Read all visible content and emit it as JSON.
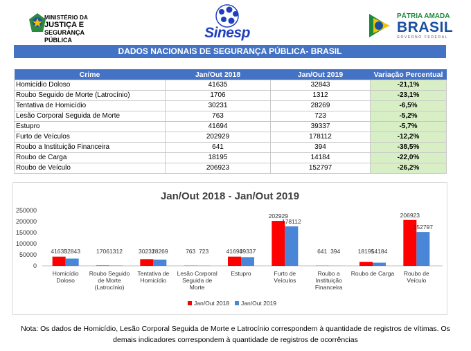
{
  "header": {
    "mj_line1": "MINISTÉRIO DA",
    "mj_line2": "JUSTIÇA E",
    "mj_line3": "SEGURANÇA PÚBLICA",
    "sinesp": "Sinesp",
    "brasil_line1": "PÁTRIA AMADA",
    "brasil_line2": "BRASIL",
    "brasil_line3": "GOVERNO FEDERAL"
  },
  "banner": "DADOS NACIONAIS DE SEGURANÇA PÚBLICA- BRASIL",
  "table": {
    "headers": [
      "Crime",
      "Jan/Out 2018",
      "Jan/Out 2019",
      "Variação Percentual"
    ],
    "rows": [
      [
        "Homicídio Doloso",
        "41635",
        "32843",
        "-21,1%"
      ],
      [
        "Roubo Seguido de Morte (Latrocínio)",
        "1706",
        "1312",
        "-23,1%"
      ],
      [
        "Tentativa de Homicídio",
        "30231",
        "28269",
        "-6,5%"
      ],
      [
        "Lesão Corporal Seguida de Morte",
        "763",
        "723",
        "-5,2%"
      ],
      [
        "Estupro",
        "41694",
        "39337",
        "-5,7%"
      ],
      [
        "Furto de Veículos",
        "202929",
        "178112",
        "-12,2%"
      ],
      [
        "Roubo a Instituição Financeira",
        "641",
        "394",
        "-38,5%"
      ],
      [
        "Roubo de Carga",
        "18195",
        "14184",
        "-22,0%"
      ],
      [
        "Roubo de Veículo",
        "206923",
        "152797",
        "-26,2%"
      ]
    ]
  },
  "chart_data": {
    "type": "bar",
    "title": "Jan/Out 2018 - Jan/Out 2019",
    "categories": [
      [
        "Homicídio",
        "Doloso"
      ],
      [
        "Roubo Seguido",
        "de Morte",
        "(Latrocínio)"
      ],
      [
        "Tentativa de",
        "Homicídio"
      ],
      [
        "Lesão Corporal",
        "Seguida de",
        "Morte"
      ],
      [
        "Estupro"
      ],
      [
        "Furto de",
        "Veículos"
      ],
      [
        "Roubo a",
        "Instituição",
        "Financeira"
      ],
      [
        "Roubo de Carga"
      ],
      [
        "Roubo de",
        "Veículo"
      ]
    ],
    "series": [
      {
        "name": "Jan/Out 2018",
        "color": "#ff0000",
        "values": [
          41635,
          1706,
          30231,
          763,
          41694,
          202929,
          641,
          18195,
          206923
        ]
      },
      {
        "name": "Jan/Out 2019",
        "color": "#4a86d8",
        "values": [
          32843,
          1312,
          28269,
          723,
          39337,
          178112,
          394,
          14184,
          152797
        ]
      }
    ],
    "yticks": [
      "250000",
      "200000",
      "150000",
      "100000",
      "50000",
      "0"
    ],
    "ylim": [
      0,
      250000
    ],
    "legend": "bottom",
    "grid": false
  },
  "note": {
    "line1": "Nota: Os dados de Homicídio, Lesão Corporal Seguida de Morte e Latrocínio correspondem à quantidade de registros de vítimas. Os",
    "line2": "demais indicadores correspondem à quantidade de registros de ocorrências"
  }
}
